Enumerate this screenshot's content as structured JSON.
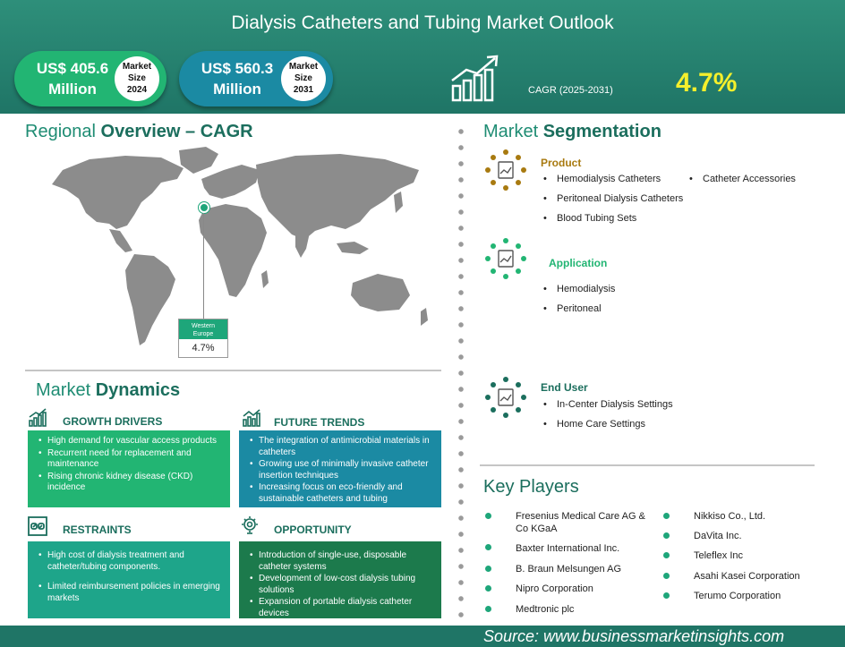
{
  "header": {
    "title": "Dialysis Catheters and Tubing Market Outlook",
    "market_2024": {
      "value_line1": "US$ 405.6",
      "value_line2": "Million",
      "badge_line1": "Market",
      "badge_line2": "Size",
      "badge_line3": "2024"
    },
    "market_2031": {
      "value_line1": "US$ 560.3",
      "value_line2": "Million",
      "badge_line1": "Market",
      "badge_line2": "Size",
      "badge_line3": "2031"
    },
    "cagr_label": "CAGR (2025-2031)",
    "cagr_value": "4.7%"
  },
  "regional": {
    "title_light": "Regional",
    "title_bold": "Overview – CAGR",
    "region_line1": "Western",
    "region_line2": "Europe",
    "region_value": "4.7%"
  },
  "dynamics": {
    "title_light": "Market",
    "title_bold": "Dynamics",
    "growth_drivers": {
      "heading": "GROWTH DRIVERS",
      "items": [
        "High demand for vascular access products",
        "Recurrent need for replacement and maintenance",
        "Rising chronic kidney disease (CKD) incidence"
      ]
    },
    "future_trends": {
      "heading": "FUTURE TRENDS",
      "items": [
        "The integration of antimicrobial materials in catheters",
        "Growing use of minimally invasive catheter insertion techniques",
        "Increasing focus on eco-friendly and sustainable catheters and tubing"
      ]
    },
    "restraints": {
      "heading": "RESTRAINTS",
      "items": [
        "High cost of dialysis treatment and catheter/tubing components.",
        "Limited reimbursement policies in emerging markets"
      ]
    },
    "opportunity": {
      "heading": "OPPORTUNITY",
      "items": [
        "Introduction of single-use, disposable catheter systems",
        "Development of low-cost dialysis tubing solutions",
        "Expansion of portable dialysis catheter devices"
      ]
    }
  },
  "segmentation": {
    "title_light": "Market",
    "title_bold": "Segmentation",
    "product": {
      "heading": "Product",
      "color": "#a87a10",
      "items": [
        "Hemodialysis Catheters",
        "Catheter Accessories",
        "Peritoneal Dialysis Catheters",
        "Blood Tubing Sets"
      ]
    },
    "application": {
      "heading": "Application",
      "color": "#22b573",
      "items": [
        "Hemodialysis",
        "Peritoneal"
      ]
    },
    "end_user": {
      "heading": "End User",
      "color": "#1b6e5d",
      "items": [
        "In-Center Dialysis Settings",
        "Home Care Settings"
      ]
    }
  },
  "players": {
    "title": "Key Players",
    "col1": [
      "Fresenius Medical Care AG & Co KGaA",
      "Baxter International Inc.",
      "B. Braun Melsungen AG",
      "Nipro Corporation",
      "Medtronic plc"
    ],
    "col2": [
      "Nikkiso Co., Ltd.",
      "DaVita Inc.",
      "Teleflex Inc",
      "Asahi Kasei Corporation",
      "Terumo Corporation"
    ]
  },
  "source": "Source:  www.businessmarketinsights.com",
  "colors": {
    "header": "#1f7566",
    "accent_green": "#22b573",
    "accent_teal": "#1b8aa3",
    "cagr_yellow": "#f4ef2c"
  }
}
